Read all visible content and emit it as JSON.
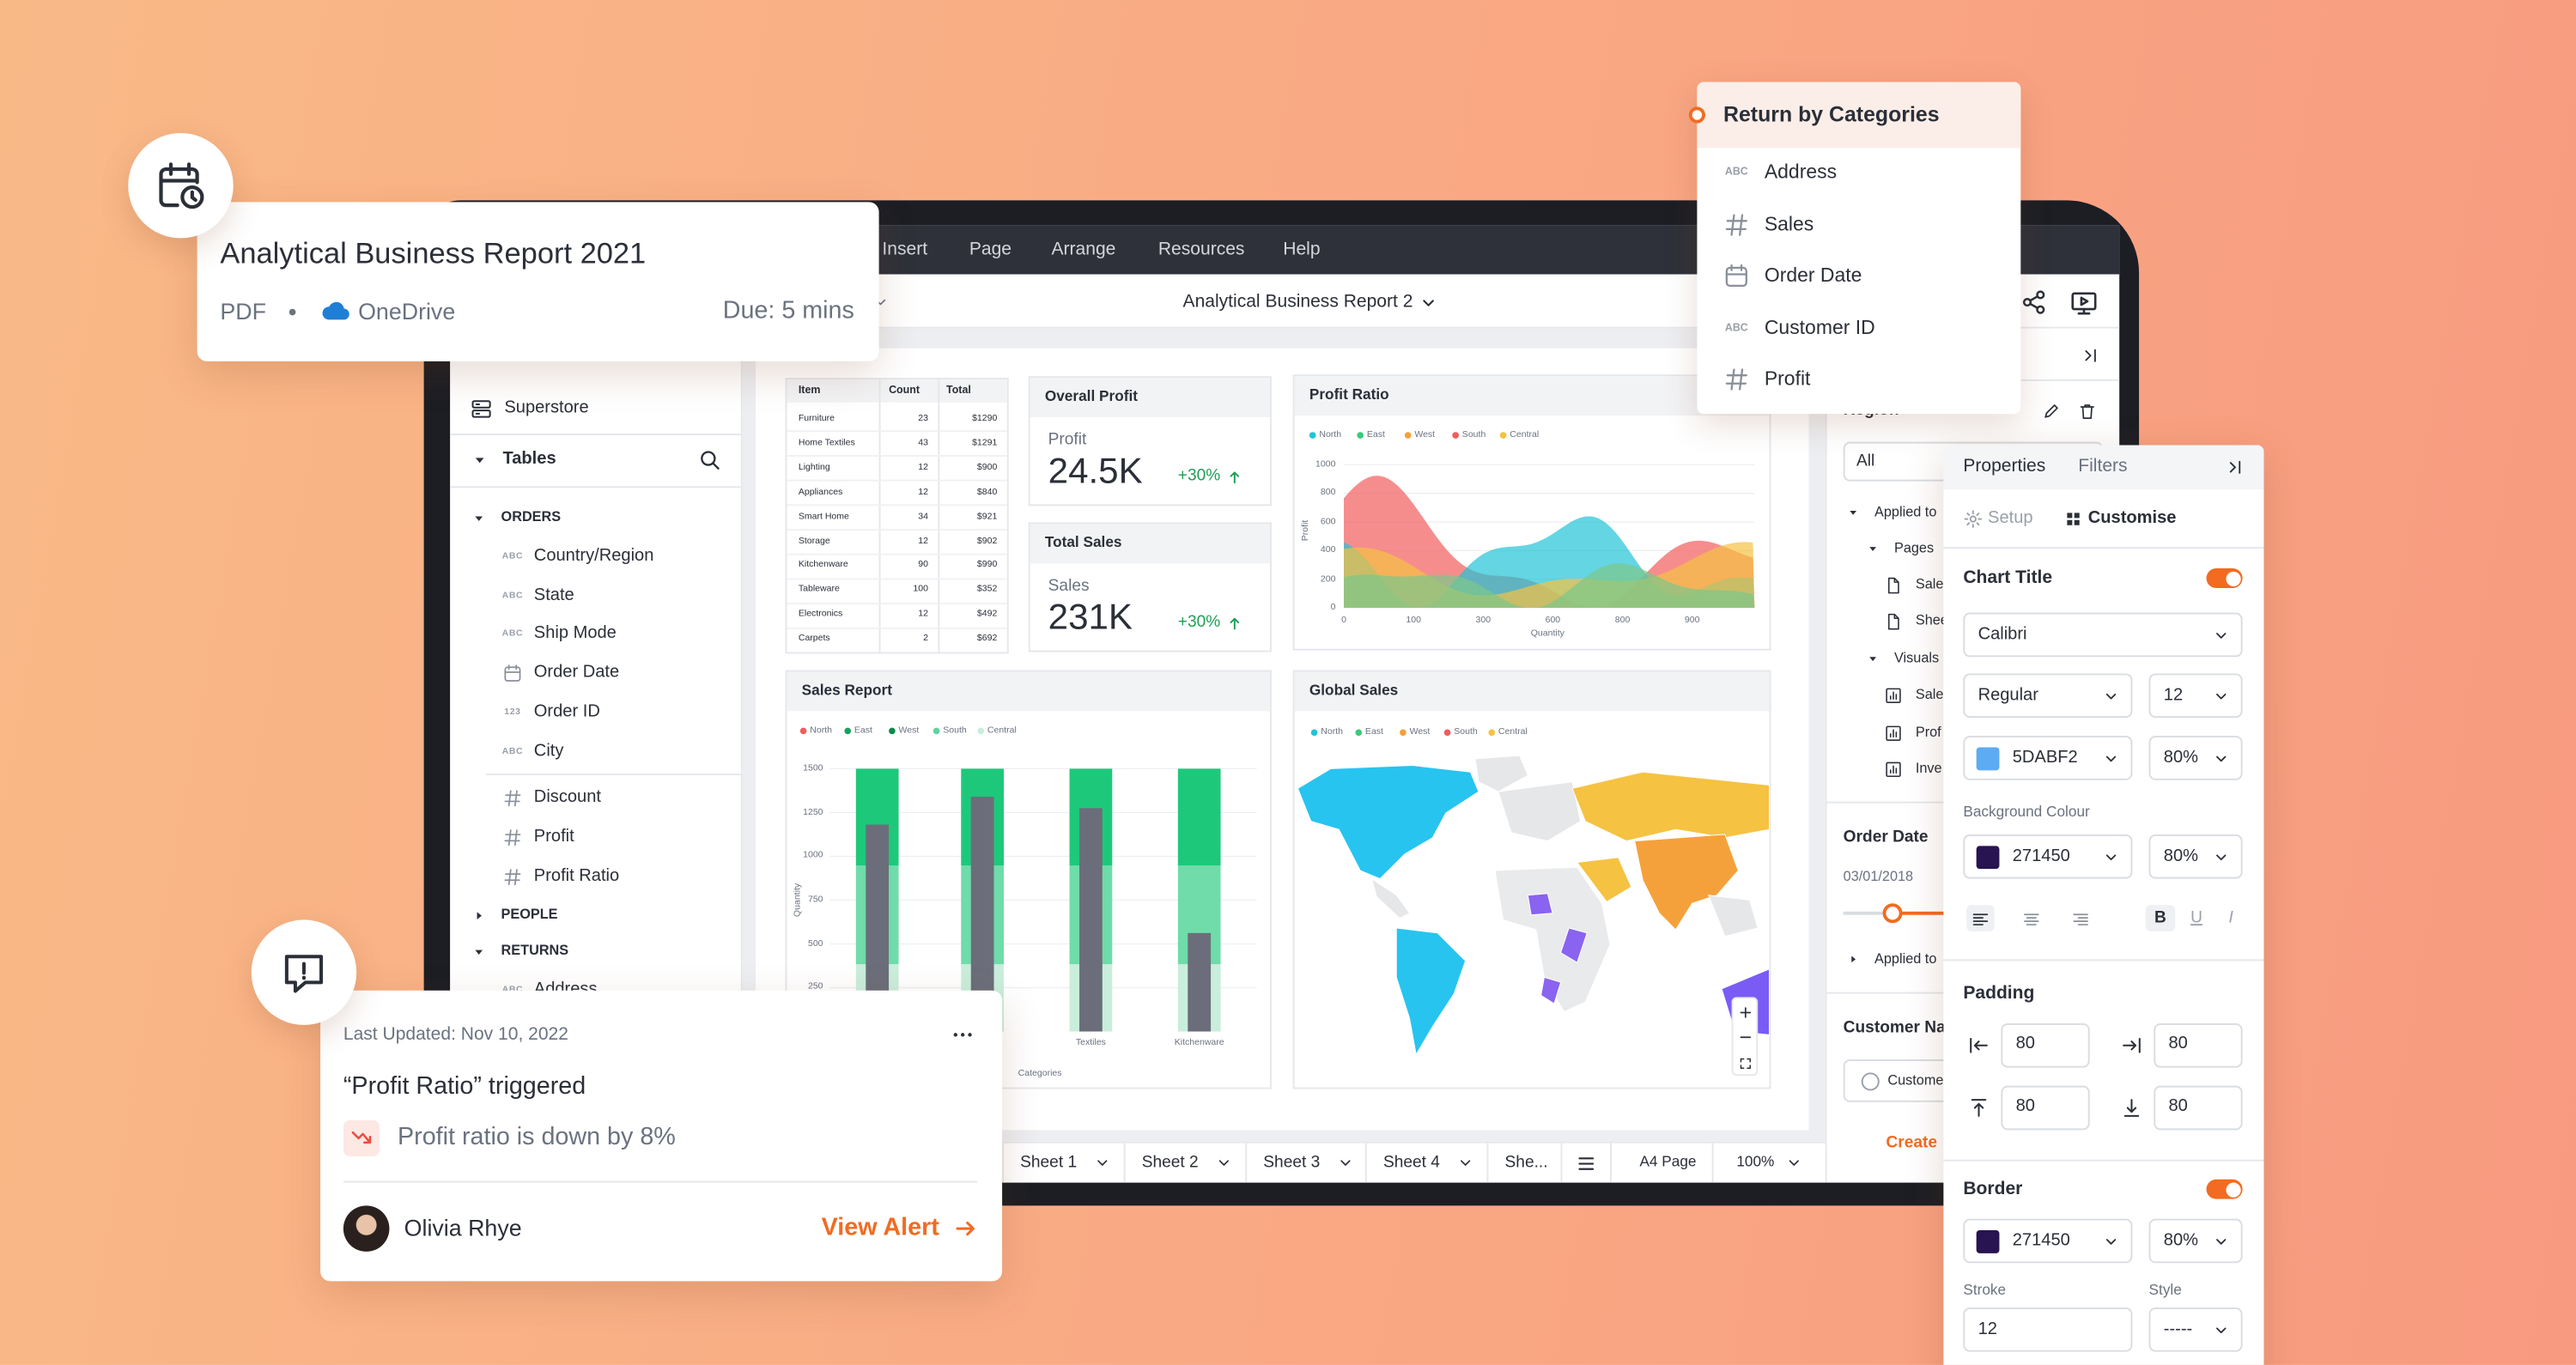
{
  "report_card": {
    "title": "Analytical Business Report 2021",
    "format": "PDF",
    "storage": "OneDrive",
    "due": "Due: 5 mins"
  },
  "type_labels": {
    "string": "ABC",
    "integer": "123"
  },
  "menu": [
    "Insert",
    "Page",
    "Arrange",
    "Resources",
    "Help"
  ],
  "document_title": "Analytical Business Report 2",
  "data_panel": {
    "source": "Superstore",
    "section": "Tables",
    "tables": [
      {
        "name": "ORDERS",
        "expanded": true,
        "fields": [
          {
            "type": "string",
            "name": "Country/Region"
          },
          {
            "type": "string",
            "name": "State"
          },
          {
            "type": "string",
            "name": "Ship Mode"
          },
          {
            "type": "date",
            "name": "Order Date"
          },
          {
            "type": "integer",
            "name": "Order ID"
          },
          {
            "type": "string",
            "name": "City"
          }
        ],
        "measures": [
          {
            "type": "measure",
            "name": "Discount"
          },
          {
            "type": "measure",
            "name": "Profit"
          },
          {
            "type": "measure",
            "name": "Profit Ratio"
          }
        ]
      },
      {
        "name": "PEOPLE",
        "expanded": false
      },
      {
        "name": "RETURNS",
        "expanded": true,
        "fields": [
          {
            "type": "string",
            "name": "Address"
          }
        ]
      }
    ]
  },
  "table": {
    "header": [
      "Item",
      "Count",
      "Total"
    ],
    "rows": [
      [
        "Furniture",
        23,
        "$1290"
      ],
      [
        "Home Textiles",
        43,
        "$1291"
      ],
      [
        "Lighting",
        12,
        "$900"
      ],
      [
        "Appliances",
        12,
        "$840"
      ],
      [
        "Smart Home",
        34,
        "$921"
      ],
      [
        "Storage",
        12,
        "$902"
      ],
      [
        "Kitchenware",
        90,
        "$990"
      ],
      [
        "Tableware",
        100,
        "$352"
      ],
      [
        "Electronics",
        12,
        "$492"
      ],
      [
        "Carpets",
        2,
        "$692"
      ]
    ]
  },
  "kpis": [
    {
      "title": "Overall Profit",
      "label": "Profit",
      "value": "24.5K",
      "change": "+30%"
    },
    {
      "title": "Total Sales",
      "label": "Sales",
      "value": "231K",
      "change": "+30%"
    }
  ],
  "profit_ratio": {
    "title": "Profit Ratio",
    "legend": [
      {
        "name": "North",
        "color": "#22c3d6"
      },
      {
        "name": "East",
        "color": "#3cc97a"
      },
      {
        "name": "West",
        "color": "#f5a13b"
      },
      {
        "name": "South",
        "color": "#f25c5c"
      },
      {
        "name": "Central",
        "color": "#f5c242"
      }
    ],
    "ylim": [
      0,
      1000
    ],
    "yticks": [
      0,
      200,
      400,
      600,
      800,
      1000
    ],
    "xticks": [
      "0",
      "100",
      "300",
      "600",
      "800",
      "900"
    ],
    "y_label": "Profit",
    "x_label": "Quantity"
  },
  "sales_report": {
    "title": "Sales Report",
    "legend": [
      {
        "name": "North",
        "color": "#f25c5c"
      },
      {
        "name": "East",
        "color": "#1aa260"
      },
      {
        "name": "West",
        "color": "#0e8a4a"
      },
      {
        "name": "South",
        "color": "#5fd3a0"
      },
      {
        "name": "Central",
        "color": "#c9eedb"
      }
    ],
    "ylim": [
      0,
      1500
    ],
    "yticks": [
      250,
      500,
      750,
      1000,
      1250,
      1500
    ],
    "categories": [
      null,
      null,
      "Textiles",
      "Kitchenware"
    ],
    "stack_colors": [
      "#c9eedb",
      "#6fdcaa",
      "#1ec87a"
    ],
    "stacks": [
      [
        384,
        563,
        553
      ],
      [
        384,
        563,
        553
      ],
      [
        384,
        563,
        553
      ],
      [
        384,
        563,
        553
      ]
    ],
    "quantity": [
      1181,
      1340,
      1275,
      562
    ],
    "quantity_color": "#6b6e7a",
    "y_label": "Quantity",
    "x_label": "Categories"
  },
  "global_sales": {
    "title": "Global Sales",
    "legend": [
      {
        "name": "North",
        "color": "#22c3d6"
      },
      {
        "name": "East",
        "color": "#3cc97a"
      },
      {
        "name": "West",
        "color": "#f5a13b"
      },
      {
        "name": "South",
        "color": "#f25c5c"
      },
      {
        "name": "Central",
        "color": "#f5c242"
      }
    ]
  },
  "sheets": {
    "tabs": [
      "Sheet 1",
      "Sheet 2",
      "Sheet 3",
      "Sheet 4",
      "She..."
    ],
    "page_size": "A4 Page",
    "zoom": "100%"
  },
  "filters_panel": {
    "field": "Region",
    "selected": "All",
    "applied": "Applied to",
    "pages": "Pages",
    "page_items": [
      "Sale",
      "Shee"
    ],
    "visuals": "Visuals",
    "visual_items": [
      "Sale",
      "Prof",
      "Inve"
    ],
    "date_field": "Order Date",
    "date": "03/01/2018",
    "date_applied": "Applied to",
    "customer_field": "Customer Na",
    "customer_option": "Custome",
    "create": "Create"
  },
  "categories_dropdown": {
    "title": "Return by Categories",
    "items": [
      {
        "type": "string",
        "name": "Address"
      },
      {
        "type": "measure",
        "name": "Sales"
      },
      {
        "type": "date",
        "name": "Order Date"
      },
      {
        "type": "string",
        "name": "Customer ID"
      },
      {
        "type": "measure",
        "name": "Profit"
      }
    ]
  },
  "properties": {
    "tabs": [
      "Properties",
      "Filters"
    ],
    "modes": [
      "Setup",
      "Customise"
    ],
    "chart_title": {
      "label": "Chart Title",
      "enabled": true
    },
    "font": "Calibri",
    "weight": "Regular",
    "size": "12",
    "color": {
      "hex": "5DABF2",
      "opacity": "80%"
    },
    "background": {
      "label": "Background Colour",
      "hex": "271450",
      "opacity": "80%"
    },
    "text_styles": [
      "B",
      "U",
      "I"
    ],
    "padding": {
      "label": "Padding",
      "values": [
        "80",
        "80",
        "80",
        "80"
      ]
    },
    "border": {
      "label": "Border",
      "enabled": true,
      "hex": "271450",
      "opacity": "80%",
      "stroke_label": "Stroke",
      "style_label": "Style",
      "stroke": "12",
      "style": "-----"
    }
  },
  "alert": {
    "updated": "Last Updated: Nov 10, 2022",
    "title": "“Profit Ratio” triggered",
    "message": "Profit ratio is down by 8%",
    "user": "Olivia Rhye",
    "action": "View Alert"
  }
}
